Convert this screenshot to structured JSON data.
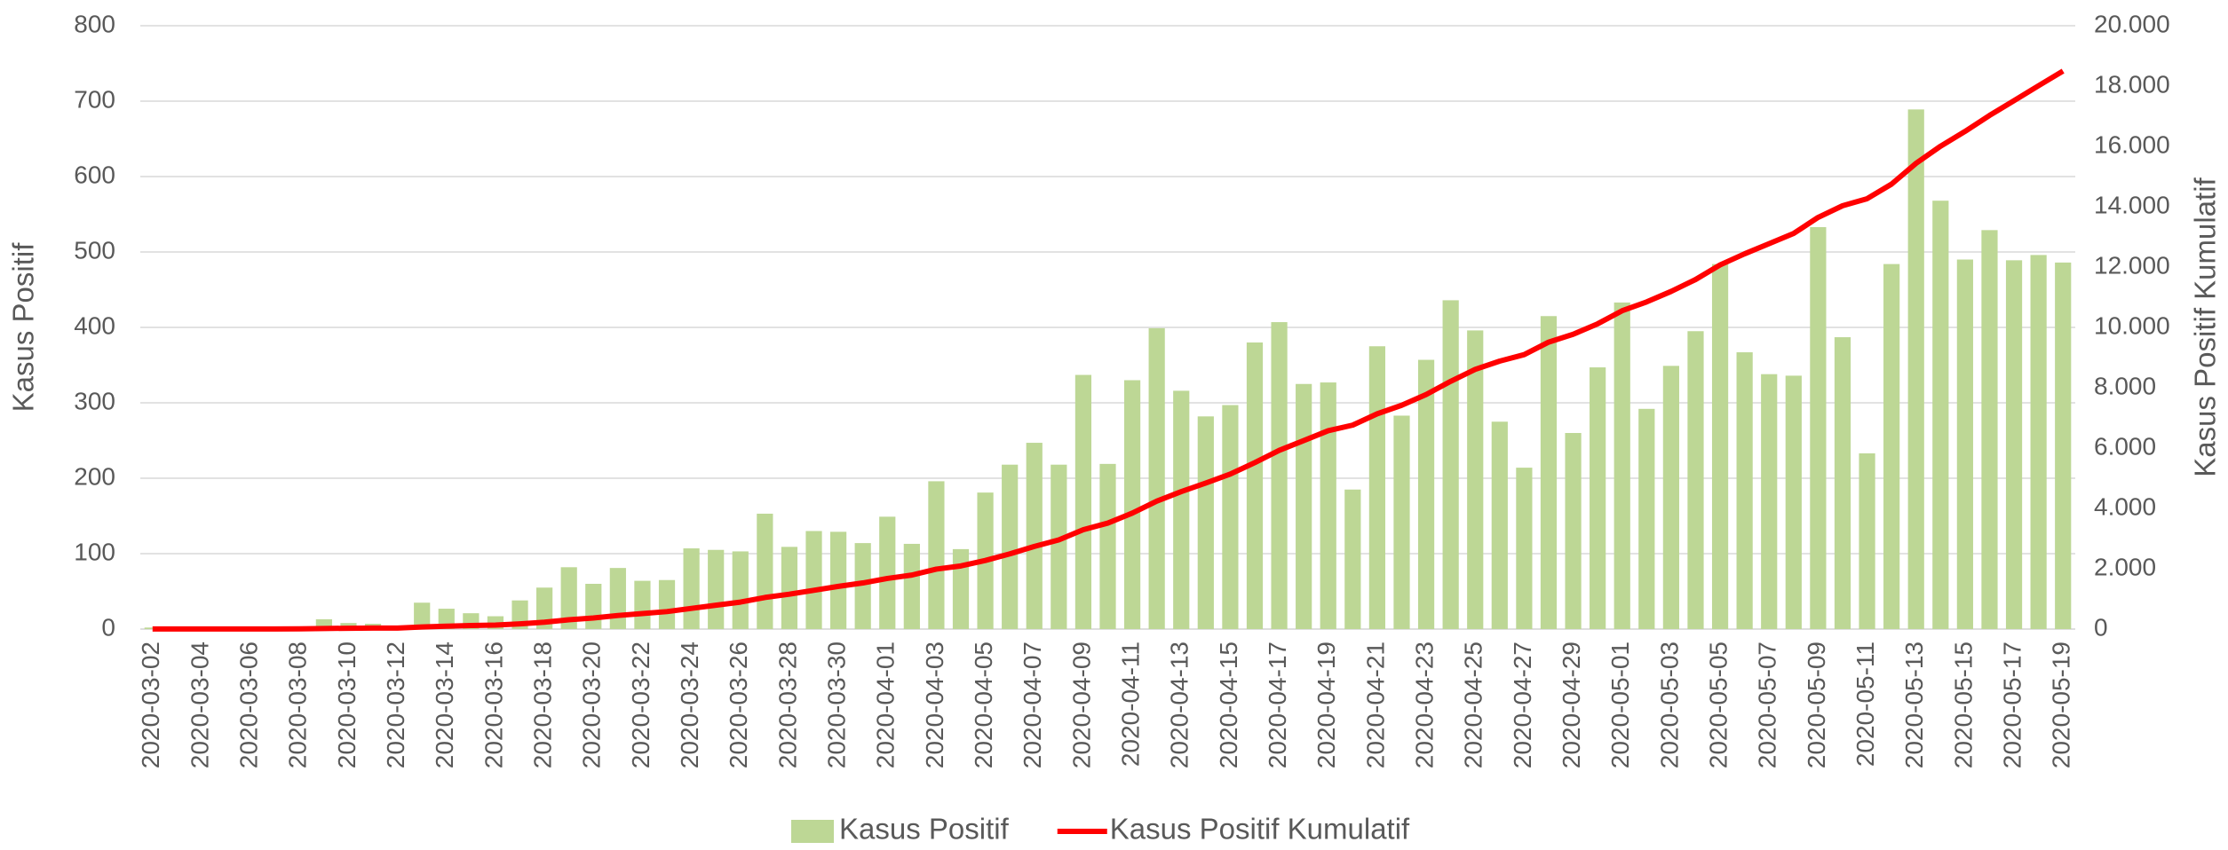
{
  "chart_data": {
    "type": "bar-line",
    "y_label": "Kasus Positif",
    "y2_label": "Kasus Positif Kumulatif",
    "categories": [
      "2020-03-02",
      null,
      "2020-03-04",
      null,
      "2020-03-06",
      null,
      "2020-03-08",
      null,
      "2020-03-10",
      null,
      "2020-03-12",
      null,
      "2020-03-14",
      null,
      "2020-03-16",
      null,
      "2020-03-18",
      null,
      "2020-03-20",
      null,
      "2020-03-22",
      null,
      "2020-03-24",
      null,
      "2020-03-26",
      null,
      "2020-03-28",
      null,
      "2020-03-30",
      null,
      "2020-04-01",
      null,
      "2020-04-03",
      null,
      "2020-04-05",
      null,
      "2020-04-07",
      null,
      "2020-04-09",
      null,
      "2020-04-11",
      null,
      "2020-04-13",
      null,
      "2020-04-15",
      null,
      "2020-04-17",
      null,
      "2020-04-19",
      null,
      "2020-04-21",
      null,
      "2020-04-23",
      null,
      "2020-04-25",
      null,
      "2020-04-27",
      null,
      "2020-04-29",
      null,
      "2020-05-01",
      null,
      "2020-05-03",
      null,
      "2020-05-05",
      null,
      "2020-05-07",
      null,
      "2020-05-09",
      null,
      "2020-05-11",
      null,
      "2020-05-13",
      null,
      "2020-05-15",
      null,
      "2020-05-17",
      null,
      "2020-05-19"
    ],
    "series": [
      {
        "name": "Kasus Positif",
        "type": "bar",
        "color": "#bdd795",
        "values": [
          2,
          0,
          0,
          0,
          2,
          0,
          2,
          13,
          8,
          7,
          0,
          35,
          27,
          21,
          17,
          38,
          55,
          82,
          60,
          81,
          64,
          65,
          107,
          105,
          103,
          153,
          109,
          130,
          129,
          114,
          149,
          113,
          196,
          106,
          181,
          218,
          247,
          218,
          337,
          219,
          330,
          399,
          316,
          282,
          297,
          380,
          407,
          325,
          327,
          185,
          375,
          283,
          357,
          436,
          396,
          275,
          214,
          415,
          260,
          347,
          433,
          292,
          349,
          395,
          484,
          367,
          338,
          336,
          533,
          387,
          233,
          484,
          689,
          568,
          490,
          529,
          489,
          496,
          486
        ]
      },
      {
        "name": "Kasus Positif Kumulatif",
        "type": "line",
        "axis": "y2",
        "color": "#ff0000",
        "values": [
          2,
          2,
          2,
          2,
          4,
          4,
          6,
          19,
          27,
          34,
          34,
          69,
          96,
          117,
          134,
          172,
          227,
          309,
          369,
          450,
          514,
          579,
          686,
          791,
          894,
          1047,
          1156,
          1286,
          1415,
          1529,
          1678,
          1791,
          1987,
          2093,
          2274,
          2492,
          2739,
          2957,
          3294,
          3513,
          3843,
          4242,
          4558,
          4840,
          5137,
          5517,
          5924,
          6249,
          6576,
          6761,
          7136,
          7419,
          7776,
          8212,
          8608,
          8883,
          9097,
          9512,
          9772,
          10119,
          10552,
          10844,
          11193,
          11588,
          12072,
          12439,
          12777,
          13113,
          13646,
          14033,
          14266,
          14750,
          15439,
          16007,
          16497,
          17026,
          17515,
          18011,
          18497
        ]
      }
    ],
    "ylim": [
      0,
      800
    ],
    "yticks": [
      0,
      100,
      200,
      300,
      400,
      500,
      600,
      700,
      800
    ],
    "y2lim": [
      0,
      20000
    ],
    "y2ticks": [
      0,
      {
        "value": 2000,
        "label": "2.000"
      },
      {
        "value": 4000,
        "label": "4.000"
      },
      {
        "value": 6000,
        "label": "6.000"
      },
      {
        "value": 8000,
        "label": "8.000"
      },
      {
        "value": 10000,
        "label": "10.000"
      },
      {
        "value": 12000,
        "label": "12.000"
      },
      {
        "value": 14000,
        "label": "14.000"
      },
      {
        "value": 16000,
        "label": "16.000"
      },
      {
        "value": 18000,
        "label": "18.000"
      },
      {
        "value": 20000,
        "label": "20.000"
      }
    ],
    "grid": true,
    "legend": "bottom"
  }
}
